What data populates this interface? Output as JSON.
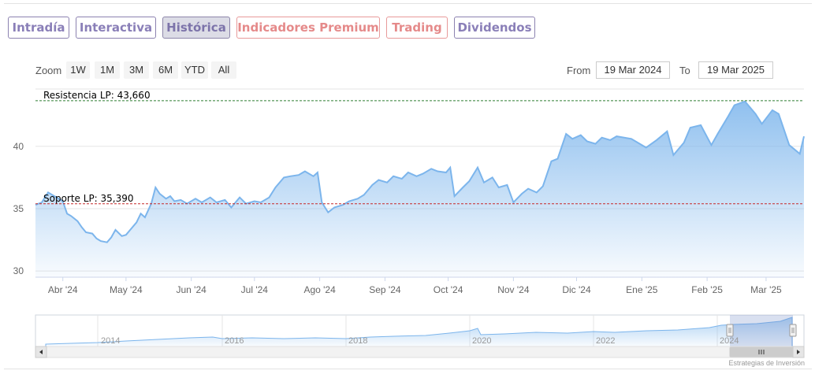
{
  "tabs": [
    {
      "label": "Intradía",
      "active": false,
      "premium": false
    },
    {
      "label": "Interactiva",
      "active": false,
      "premium": false
    },
    {
      "label": "Histórica",
      "active": true,
      "premium": false
    },
    {
      "label": "Indicadores Premium",
      "active": false,
      "premium": true
    },
    {
      "label": "Trading",
      "active": false,
      "premium": true
    },
    {
      "label": "Dividendos",
      "active": false,
      "premium": false
    }
  ],
  "zoom": {
    "label": "Zoom",
    "options": [
      "1W",
      "1M",
      "3M",
      "6M",
      "YTD",
      "All"
    ]
  },
  "range": {
    "from_label": "From",
    "from_value": "19 Mar 2024",
    "to_label": "To",
    "to_value": "19 Mar 2025"
  },
  "credit": "Estrategias de Inversión",
  "colors": {
    "line": "#7cb5ec",
    "resistance": "#2e7d32",
    "support": "#c62828",
    "tab_text": "#8a7fb8",
    "tab_premium": "#e58a8a"
  },
  "chart_data": {
    "type": "area",
    "title": "",
    "xlabel": "",
    "ylabel": "",
    "ylim": [
      29.5,
      44.6
    ],
    "yticks": [
      30,
      35,
      40
    ],
    "xlim": [
      "2024-03-19",
      "2025-03-19"
    ],
    "xticks": [
      {
        "label": "Abr '24",
        "date": "2024-04-01"
      },
      {
        "label": "May '24",
        "date": "2024-05-01"
      },
      {
        "label": "Jun '24",
        "date": "2024-06-01"
      },
      {
        "label": "Jul '24",
        "date": "2024-07-01"
      },
      {
        "label": "Ago '24",
        "date": "2024-08-01"
      },
      {
        "label": "Sep '24",
        "date": "2024-09-01"
      },
      {
        "label": "Oct '24",
        "date": "2024-10-01"
      },
      {
        "label": "Nov '24",
        "date": "2024-11-01"
      },
      {
        "label": "Dic '24",
        "date": "2024-12-01"
      },
      {
        "label": "Ene '25",
        "date": "2025-01-01"
      },
      {
        "label": "Feb '25",
        "date": "2025-02-01"
      },
      {
        "label": "Mar '25",
        "date": "2025-03-01"
      }
    ],
    "grid": true,
    "legend": "none",
    "reference_lines": [
      {
        "label": "Resistencia LP: 43,660",
        "value": 43.66,
        "style": "dashed",
        "color": "#2e7d32"
      },
      {
        "label": "Soporte LP: 35,390",
        "value": 35.39,
        "style": "dashed",
        "color": "#c62828"
      }
    ],
    "series": [
      {
        "x": [
          "2024-03-19",
          "2024-03-22",
          "2024-03-25",
          "2024-03-28",
          "2024-04-01",
          "2024-04-03",
          "2024-04-05",
          "2024-04-08",
          "2024-04-10",
          "2024-04-12",
          "2024-04-15",
          "2024-04-17",
          "2024-04-19",
          "2024-04-22",
          "2024-04-24",
          "2024-04-26",
          "2024-04-29",
          "2024-05-01",
          "2024-05-03",
          "2024-05-06",
          "2024-05-08",
          "2024-05-10",
          "2024-05-13",
          "2024-05-15",
          "2024-05-17",
          "2024-05-20",
          "2024-05-22",
          "2024-05-24",
          "2024-05-27",
          "2024-05-30",
          "2024-06-03",
          "2024-06-06",
          "2024-06-10",
          "2024-06-13",
          "2024-06-17",
          "2024-06-20",
          "2024-06-24",
          "2024-06-27",
          "2024-07-01",
          "2024-07-04",
          "2024-07-08",
          "2024-07-11",
          "2024-07-15",
          "2024-07-18",
          "2024-07-22",
          "2024-07-25",
          "2024-07-29",
          "2024-07-31",
          "2024-08-02",
          "2024-08-05",
          "2024-08-08",
          "2024-08-12",
          "2024-08-15",
          "2024-08-19",
          "2024-08-22",
          "2024-08-26",
          "2024-08-29",
          "2024-09-02",
          "2024-09-05",
          "2024-09-09",
          "2024-09-12",
          "2024-09-16",
          "2024-09-19",
          "2024-09-23",
          "2024-09-26",
          "2024-09-30",
          "2024-10-02",
          "2024-10-04",
          "2024-10-08",
          "2024-10-11",
          "2024-10-15",
          "2024-10-18",
          "2024-10-22",
          "2024-10-25",
          "2024-10-29",
          "2024-11-01",
          "2024-11-05",
          "2024-11-08",
          "2024-11-12",
          "2024-11-15",
          "2024-11-19",
          "2024-11-22",
          "2024-11-26",
          "2024-11-29",
          "2024-12-03",
          "2024-12-06",
          "2024-12-10",
          "2024-12-13",
          "2024-12-17",
          "2024-12-20",
          "2024-12-27",
          "2025-01-03",
          "2025-01-08",
          "2025-01-13",
          "2025-01-16",
          "2025-01-21",
          "2025-01-24",
          "2025-01-29",
          "2025-02-03",
          "2025-02-06",
          "2025-02-11",
          "2025-02-14",
          "2025-02-19",
          "2025-02-24",
          "2025-02-27",
          "2025-03-04",
          "2025-03-07",
          "2025-03-12",
          "2025-03-17",
          "2025-03-19"
        ],
        "values": [
          35.3,
          35.5,
          36.3,
          36.0,
          35.6,
          34.6,
          34.4,
          34.0,
          33.5,
          33.1,
          33.0,
          32.6,
          32.4,
          32.3,
          32.7,
          33.3,
          32.8,
          32.9,
          33.3,
          33.9,
          34.6,
          34.3,
          35.4,
          36.7,
          36.2,
          35.8,
          36.0,
          35.6,
          35.7,
          35.4,
          35.8,
          35.5,
          35.9,
          35.5,
          35.7,
          35.1,
          35.9,
          35.4,
          35.6,
          35.5,
          35.9,
          36.7,
          37.5,
          37.6,
          37.7,
          38.0,
          37.6,
          37.9,
          35.5,
          34.7,
          35.1,
          35.3,
          35.6,
          35.8,
          36.1,
          36.9,
          37.3,
          37.1,
          37.6,
          37.4,
          37.9,
          37.6,
          37.8,
          38.2,
          38.0,
          37.9,
          38.3,
          36.0,
          36.7,
          37.2,
          38.3,
          37.1,
          37.5,
          36.7,
          36.9,
          35.5,
          36.2,
          36.6,
          36.3,
          36.8,
          38.8,
          39.0,
          41.0,
          40.6,
          40.9,
          40.4,
          40.2,
          40.7,
          40.5,
          40.8,
          40.6,
          39.9,
          40.5,
          41.2,
          39.3,
          40.3,
          41.5,
          41.7,
          40.1,
          41.0,
          42.4,
          43.3,
          43.6,
          42.6,
          41.8,
          42.9,
          42.6,
          40.1,
          39.4,
          40.8
        ]
      }
    ]
  }
}
